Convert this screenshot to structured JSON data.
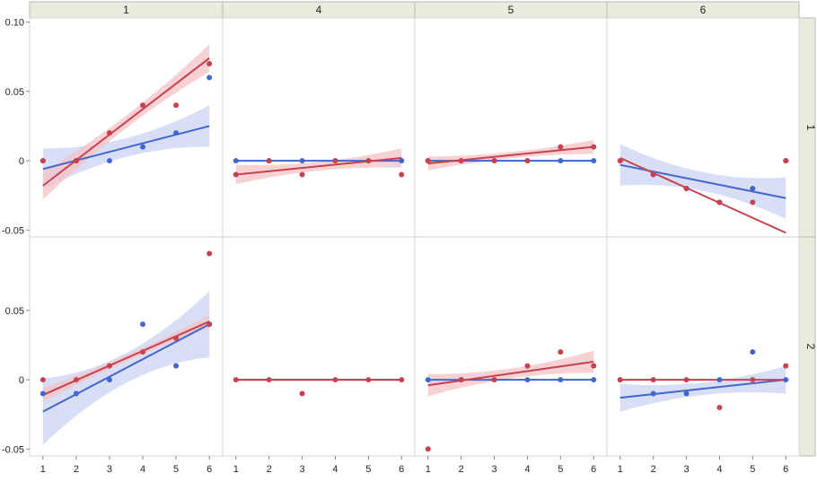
{
  "colors": {
    "red": "#c8414f",
    "blue": "#4166cc",
    "red_band": "#f4c2c6",
    "blue_band": "#c9d3f3",
    "header_bg": "#ebebdd",
    "grid": "#d4d4d4",
    "frame": "#b8b8b8"
  },
  "chart_data": {
    "type": "scatter",
    "grid_layout": "trellis 2 rows x 4 columns",
    "column_labels": [
      "1",
      "4",
      "5",
      "6"
    ],
    "row_labels": [
      "1",
      "2"
    ],
    "x_ticks": [
      "1",
      "2",
      "3",
      "4",
      "5",
      "6"
    ],
    "xlim": [
      0.6,
      6.4
    ],
    "y_ticks_row1": [
      "0.10",
      "0.05",
      "0",
      "-0.05"
    ],
    "y_ticks_row2": [
      "0.05",
      "0",
      "-0.05"
    ],
    "ylim": [
      -0.055,
      0.103
    ],
    "xlabel": "",
    "ylabel": "",
    "series_colors": [
      "red",
      "blue"
    ],
    "panels": [
      {
        "row": 0,
        "col": 0,
        "red": {
          "x": [
            1,
            2,
            3,
            4,
            5,
            6
          ],
          "y": [
            0.0,
            0.0,
            0.02,
            0.04,
            0.04,
            0.07
          ],
          "fit": [
            -0.018,
            0.074
          ],
          "band": 0.01
        },
        "blue": {
          "x": [
            1,
            2,
            3,
            4,
            5,
            6
          ],
          "y": [
            0.0,
            0.0,
            0.0,
            0.01,
            0.02,
            0.06
          ],
          "fit": [
            -0.006,
            0.025
          ],
          "band": 0.015
        }
      },
      {
        "row": 0,
        "col": 1,
        "red": {
          "x": [
            1,
            2,
            3,
            4,
            5,
            6
          ],
          "y": [
            -0.01,
            0.0,
            -0.01,
            0.0,
            0.0,
            -0.01
          ],
          "fit": [
            -0.01,
            0.002
          ],
          "band": 0.007
        },
        "blue": {
          "x": [
            1,
            2,
            3,
            4,
            5,
            6
          ],
          "y": [
            0.0,
            0.0,
            0.0,
            0.0,
            0.0,
            0.0
          ],
          "fit": [
            0.0,
            0.0
          ],
          "band": 0.0
        }
      },
      {
        "row": 0,
        "col": 2,
        "red": {
          "x": [
            1,
            2,
            3,
            4,
            5,
            6
          ],
          "y": [
            0.0,
            0.0,
            0.0,
            0.0,
            0.01,
            0.01
          ],
          "fit": [
            -0.002,
            0.01
          ],
          "band": 0.005
        },
        "blue": {
          "x": [
            1,
            2,
            3,
            4,
            5,
            6
          ],
          "y": [
            0.0,
            0.0,
            0.0,
            0.0,
            0.0,
            0.0
          ],
          "fit": [
            0.0,
            0.0
          ],
          "band": 0.0
        }
      },
      {
        "row": 0,
        "col": 3,
        "red": {
          "x": [
            1,
            2,
            3,
            4,
            5,
            6
          ],
          "y": [
            0.0,
            -0.01,
            -0.02,
            -0.03,
            -0.03,
            0.0
          ],
          "fit": [
            0.002,
            -0.052
          ],
          "band": 0.0
        },
        "blue": {
          "x": [
            1,
            2,
            3,
            4,
            5,
            6
          ],
          "y": [
            0.0,
            -0.01,
            -0.02,
            -0.03,
            -0.02,
            0.0
          ],
          "fit": [
            -0.003,
            -0.027
          ],
          "band": 0.015
        }
      },
      {
        "row": 1,
        "col": 0,
        "red": {
          "x": [
            1,
            2,
            3,
            4,
            5,
            6
          ],
          "y": [
            0.0,
            0.0,
            0.01,
            0.02,
            0.03,
            0.04
          ],
          "fit": [
            -0.011,
            0.042
          ],
          "band": 0.005
        },
        "blue": {
          "x": [
            1,
            2,
            3,
            4,
            5,
            6
          ],
          "y": [
            -0.01,
            -0.01,
            0.0,
            0.04,
            0.01,
            0.04
          ],
          "fit": [
            -0.023,
            0.04
          ],
          "band": 0.024
        }
      },
      {
        "row": 1,
        "col": 0,
        "extra_red_point": [
          6,
          0.091
        ]
      },
      {
        "row": 1,
        "col": 1,
        "red": {
          "x": [
            1,
            2,
            3,
            4,
            5,
            6
          ],
          "y": [
            0.0,
            0.0,
            -0.01,
            0.0,
            0.0,
            0.0
          ],
          "fit": [
            0.0,
            0.0
          ],
          "band": 0.0
        },
        "blue": {
          "x": [],
          "y": [],
          "fit": [
            0.0,
            0.0
          ],
          "band": 0.0
        }
      },
      {
        "row": 1,
        "col": 2,
        "red": {
          "x": [
            1,
            2,
            3,
            4,
            5,
            6
          ],
          "y": [
            -0.05,
            0.0,
            0.0,
            0.01,
            0.02,
            0.01
          ],
          "fit": [
            -0.004,
            0.013
          ],
          "band": 0.008
        },
        "blue": {
          "x": [
            1,
            2,
            3,
            4,
            5,
            6
          ],
          "y": [
            0.0,
            0.0,
            0.0,
            0.0,
            0.0,
            0.0
          ],
          "fit": [
            0.0,
            0.0
          ],
          "band": 0.0
        }
      },
      {
        "row": 1,
        "col": 3,
        "red": {
          "x": [
            1,
            2,
            3,
            4,
            5,
            6
          ],
          "y": [
            0.0,
            0.0,
            0.0,
            -0.02,
            0.0,
            0.01
          ],
          "fit": [
            0.0,
            0.0
          ],
          "band": 0.0
        },
        "blue": {
          "x": [
            1,
            2,
            3,
            4,
            5,
            6
          ],
          "y": [
            0.0,
            -0.01,
            -0.01,
            0.0,
            0.02,
            0.0
          ],
          "fit": [
            -0.013,
            0.0
          ],
          "band": 0.01
        }
      }
    ]
  }
}
